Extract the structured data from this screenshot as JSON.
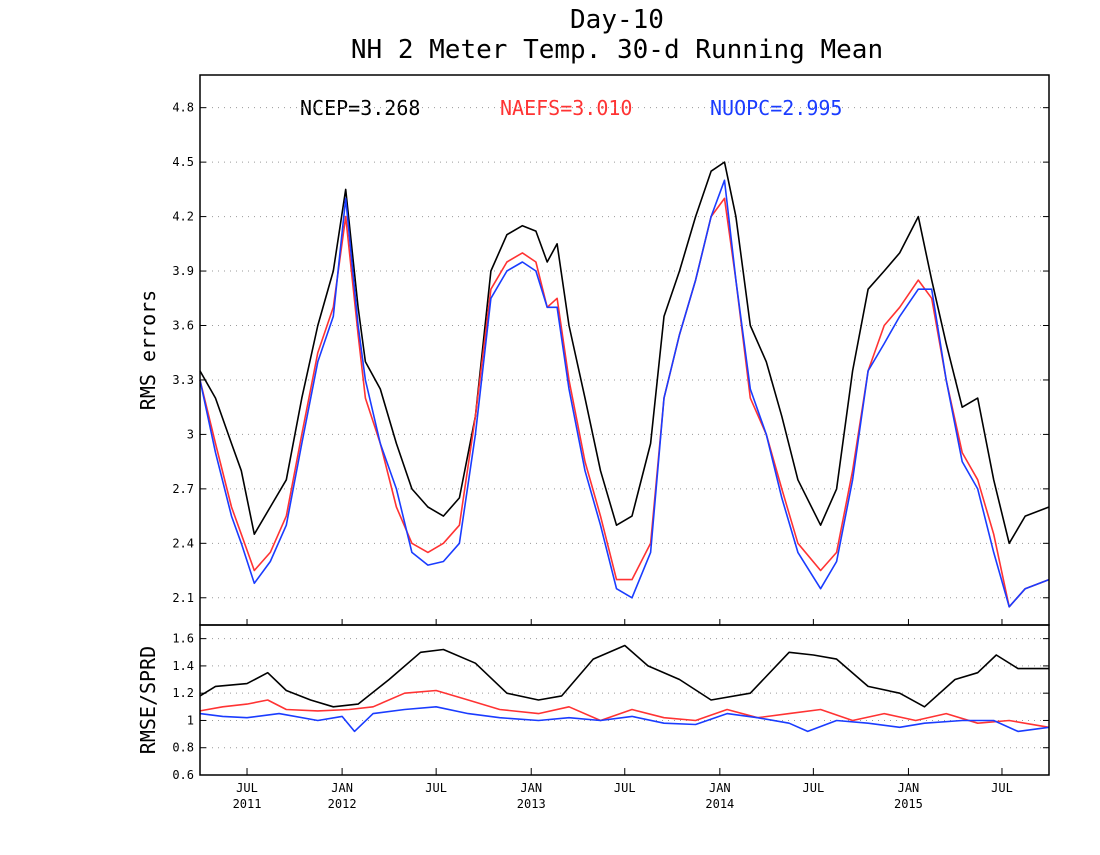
{
  "chart_data": [
    {
      "panel": "top",
      "type": "line",
      "title": "Day-10",
      "subtitle": "NH 2 Meter Temp. 30-d Running Mean",
      "ylabel": "RMS errors",
      "xlabel": "",
      "ylim": [
        1.95,
        4.98
      ],
      "yticks": [
        2.1,
        2.4,
        2.7,
        3.0,
        3.3,
        3.6,
        3.9,
        4.2,
        4.5,
        4.8
      ],
      "ytick_labels": [
        "2.1",
        "2.4",
        "2.7",
        "3",
        "3.3",
        "3.6",
        "3.9",
        "4.2",
        "4.5",
        "4.8"
      ],
      "grid": true,
      "legend_labels": [
        "NCEP=3.268",
        "NAEFS=3.010",
        "NUOPC=2.995"
      ],
      "legend_placement": "top inside",
      "x_range": [
        "2011-04-01",
        "2015-09-30"
      ],
      "series": [
        {
          "name": "NCEP",
          "mean_label": "NCEP=3.268",
          "color": "#000000",
          "x": [
            "2011-04-01",
            "2011-05-01",
            "2011-06-01",
            "2011-06-20",
            "2011-07-15",
            "2011-08-15",
            "2011-09-15",
            "2011-10-15",
            "2011-11-15",
            "2011-12-15",
            "2012-01-08",
            "2012-02-01",
            "2012-02-15",
            "2012-03-15",
            "2012-04-15",
            "2012-05-15",
            "2012-06-15",
            "2012-07-15",
            "2012-08-15",
            "2012-09-15",
            "2012-10-15",
            "2012-11-15",
            "2012-12-15",
            "2013-01-10",
            "2013-02-01",
            "2013-02-20",
            "2013-03-15",
            "2013-04-15",
            "2013-05-15",
            "2013-06-15",
            "2013-07-15",
            "2013-08-20",
            "2013-09-15",
            "2013-10-15",
            "2013-11-15",
            "2013-12-15",
            "2014-01-10",
            "2014-02-01",
            "2014-03-01",
            "2014-04-01",
            "2014-05-01",
            "2014-06-01",
            "2014-07-15",
            "2014-08-15",
            "2014-09-15",
            "2014-10-15",
            "2014-11-15",
            "2014-12-15",
            "2015-01-20",
            "2015-02-15",
            "2015-03-15",
            "2015-04-15",
            "2015-05-15",
            "2015-06-15",
            "2015-07-15",
            "2015-08-15",
            "2015-09-30"
          ],
          "y": [
            3.35,
            3.2,
            2.95,
            2.8,
            2.45,
            2.6,
            2.75,
            3.2,
            3.6,
            3.9,
            4.35,
            3.7,
            3.4,
            3.25,
            2.95,
            2.7,
            2.6,
            2.55,
            2.65,
            3.1,
            3.9,
            4.1,
            4.15,
            4.12,
            3.95,
            4.05,
            3.6,
            3.2,
            2.8,
            2.5,
            2.55,
            2.95,
            3.65,
            3.9,
            4.2,
            4.45,
            4.5,
            4.2,
            3.6,
            3.4,
            3.1,
            2.75,
            2.5,
            2.7,
            3.35,
            3.8,
            3.9,
            4.0,
            4.2,
            3.85,
            3.5,
            3.15,
            3.2,
            2.75,
            2.4,
            2.55,
            2.6
          ]
        },
        {
          "name": "NAEFS",
          "mean_label": "NAEFS=3.010",
          "color": "#ff3333",
          "x": [
            "2011-04-01",
            "2011-05-01",
            "2011-06-01",
            "2011-06-20",
            "2011-07-15",
            "2011-08-15",
            "2011-09-15",
            "2011-10-15",
            "2011-11-15",
            "2011-12-15",
            "2012-01-08",
            "2012-02-01",
            "2012-02-15",
            "2012-03-15",
            "2012-04-15",
            "2012-05-15",
            "2012-06-15",
            "2012-07-15",
            "2012-08-15",
            "2012-09-15",
            "2012-10-15",
            "2012-11-15",
            "2012-12-15",
            "2013-01-10",
            "2013-02-01",
            "2013-02-20",
            "2013-03-15",
            "2013-04-15",
            "2013-05-15",
            "2013-06-15",
            "2013-07-15",
            "2013-08-20",
            "2013-09-15",
            "2013-10-15",
            "2013-11-15",
            "2013-12-15",
            "2014-01-10",
            "2014-02-01",
            "2014-03-01",
            "2014-04-01",
            "2014-05-01",
            "2014-06-01",
            "2014-07-15",
            "2014-08-15",
            "2014-09-15",
            "2014-10-15",
            "2014-11-15",
            "2014-12-15",
            "2015-01-20",
            "2015-02-15",
            "2015-03-15",
            "2015-04-15",
            "2015-05-15",
            "2015-06-15",
            "2015-07-15",
            "2015-08-15",
            "2015-09-30"
          ],
          "y": [
            3.3,
            2.95,
            2.6,
            2.45,
            2.25,
            2.35,
            2.55,
            3.0,
            3.45,
            3.7,
            4.2,
            3.55,
            3.2,
            2.95,
            2.6,
            2.4,
            2.35,
            2.4,
            2.5,
            3.1,
            3.8,
            3.95,
            4.0,
            3.95,
            3.7,
            3.75,
            3.3,
            2.85,
            2.55,
            2.2,
            2.2,
            2.4,
            3.2,
            3.55,
            3.85,
            4.2,
            4.3,
            3.85,
            3.2,
            3.0,
            2.7,
            2.4,
            2.25,
            2.35,
            2.8,
            3.35,
            3.6,
            3.7,
            3.85,
            3.75,
            3.3,
            2.9,
            2.75,
            2.45,
            2.05,
            2.15,
            2.2
          ]
        },
        {
          "name": "NUOPC",
          "mean_label": "NUOPC=2.995",
          "color": "#1a3cff",
          "x": [
            "2011-04-01",
            "2011-05-01",
            "2011-06-01",
            "2011-06-20",
            "2011-07-15",
            "2011-08-15",
            "2011-09-15",
            "2011-10-15",
            "2011-11-15",
            "2011-12-15",
            "2012-01-08",
            "2012-02-01",
            "2012-02-15",
            "2012-03-15",
            "2012-04-15",
            "2012-05-15",
            "2012-06-15",
            "2012-07-15",
            "2012-08-15",
            "2012-09-15",
            "2012-10-15",
            "2012-11-15",
            "2012-12-15",
            "2013-01-10",
            "2013-02-01",
            "2013-02-20",
            "2013-03-15",
            "2013-04-15",
            "2013-05-15",
            "2013-06-15",
            "2013-07-15",
            "2013-08-20",
            "2013-09-15",
            "2013-10-15",
            "2013-11-15",
            "2013-12-15",
            "2014-01-10",
            "2014-02-01",
            "2014-03-01",
            "2014-04-01",
            "2014-05-01",
            "2014-06-01",
            "2014-07-15",
            "2014-08-15",
            "2014-09-15",
            "2014-10-15",
            "2014-11-15",
            "2014-12-15",
            "2015-01-20",
            "2015-02-15",
            "2015-03-15",
            "2015-04-15",
            "2015-05-15",
            "2015-06-15",
            "2015-07-15",
            "2015-08-15",
            "2015-09-30"
          ],
          "y": [
            3.3,
            2.9,
            2.55,
            2.4,
            2.18,
            2.3,
            2.5,
            2.95,
            3.4,
            3.65,
            4.3,
            3.6,
            3.3,
            2.95,
            2.7,
            2.35,
            2.28,
            2.3,
            2.4,
            3.0,
            3.75,
            3.9,
            3.95,
            3.9,
            3.7,
            3.7,
            3.25,
            2.8,
            2.5,
            2.15,
            2.1,
            2.35,
            3.2,
            3.55,
            3.85,
            4.2,
            4.4,
            3.85,
            3.25,
            3.0,
            2.65,
            2.35,
            2.15,
            2.3,
            2.75,
            3.35,
            3.5,
            3.65,
            3.8,
            3.8,
            3.3,
            2.85,
            2.7,
            2.35,
            2.05,
            2.15,
            2.2
          ]
        }
      ]
    },
    {
      "panel": "bottom",
      "type": "line",
      "ylabel": "RMSE/SPRD",
      "xlabel": "",
      "ylim": [
        0.6,
        1.7
      ],
      "yticks": [
        0.6,
        0.8,
        1.0,
        1.2,
        1.4,
        1.6
      ],
      "ytick_labels": [
        "0.6",
        "0.8",
        "1",
        "1.2",
        "1.4",
        "1.6"
      ],
      "grid": true,
      "x_range": [
        "2011-04-01",
        "2015-09-30"
      ],
      "x_ticks": [
        {
          "date": "2011-07-01",
          "label": "JUL",
          "year": "2011"
        },
        {
          "date": "2012-01-01",
          "label": "JAN",
          "year": "2012"
        },
        {
          "date": "2012-07-01",
          "label": "JUL",
          "year": ""
        },
        {
          "date": "2013-01-01",
          "label": "JAN",
          "year": "2013"
        },
        {
          "date": "2013-07-01",
          "label": "JUL",
          "year": ""
        },
        {
          "date": "2014-01-01",
          "label": "JAN",
          "year": "2014"
        },
        {
          "date": "2014-07-01",
          "label": "JUL",
          "year": ""
        },
        {
          "date": "2015-01-01",
          "label": "JAN",
          "year": "2015"
        },
        {
          "date": "2015-07-01",
          "label": "JUL",
          "year": ""
        }
      ],
      "series": [
        {
          "name": "NCEP",
          "color": "#000000",
          "x": [
            "2011-04-01",
            "2011-05-01",
            "2011-07-01",
            "2011-08-10",
            "2011-09-15",
            "2011-11-01",
            "2011-12-15",
            "2012-02-01",
            "2012-04-01",
            "2012-06-01",
            "2012-07-15",
            "2012-09-15",
            "2012-11-15",
            "2013-01-15",
            "2013-03-01",
            "2013-05-01",
            "2013-07-01",
            "2013-08-15",
            "2013-10-15",
            "2013-12-15",
            "2014-03-01",
            "2014-05-15",
            "2014-07-01",
            "2014-08-15",
            "2014-10-15",
            "2014-12-15",
            "2015-02-01",
            "2015-04-01",
            "2015-05-15",
            "2015-06-20",
            "2015-08-01",
            "2015-09-30"
          ],
          "y": [
            1.18,
            1.25,
            1.27,
            1.35,
            1.22,
            1.15,
            1.1,
            1.12,
            1.3,
            1.5,
            1.52,
            1.42,
            1.2,
            1.15,
            1.18,
            1.45,
            1.55,
            1.4,
            1.3,
            1.15,
            1.2,
            1.5,
            1.48,
            1.45,
            1.25,
            1.2,
            1.1,
            1.3,
            1.35,
            1.48,
            1.38,
            1.38
          ]
        },
        {
          "name": "NAEFS",
          "color": "#ff3333",
          "x": [
            "2011-04-01",
            "2011-05-15",
            "2011-07-01",
            "2011-08-10",
            "2011-09-15",
            "2011-11-15",
            "2012-01-15",
            "2012-03-01",
            "2012-05-01",
            "2012-07-01",
            "2012-09-01",
            "2012-11-01",
            "2013-01-15",
            "2013-03-15",
            "2013-05-15",
            "2013-07-15",
            "2013-09-15",
            "2013-11-15",
            "2014-01-15",
            "2014-03-15",
            "2014-05-15",
            "2014-07-15",
            "2014-09-15",
            "2014-11-15",
            "2015-01-15",
            "2015-03-15",
            "2015-05-15",
            "2015-07-15",
            "2015-09-30"
          ],
          "y": [
            1.07,
            1.1,
            1.12,
            1.15,
            1.08,
            1.07,
            1.08,
            1.1,
            1.2,
            1.22,
            1.15,
            1.08,
            1.05,
            1.1,
            1.0,
            1.08,
            1.02,
            1.0,
            1.08,
            1.02,
            1.05,
            1.08,
            1.0,
            1.05,
            1.0,
            1.05,
            0.98,
            1.0,
            0.95
          ]
        },
        {
          "name": "NUOPC",
          "color": "#1a3cff",
          "x": [
            "2011-04-01",
            "2011-05-15",
            "2011-07-01",
            "2011-09-01",
            "2011-11-15",
            "2012-01-01",
            "2012-01-25",
            "2012-03-01",
            "2012-05-01",
            "2012-07-01",
            "2012-09-01",
            "2012-11-01",
            "2013-01-15",
            "2013-03-15",
            "2013-05-15",
            "2013-07-15",
            "2013-09-15",
            "2013-11-15",
            "2014-01-15",
            "2014-03-15",
            "2014-05-15",
            "2014-06-20",
            "2014-08-15",
            "2014-10-15",
            "2014-12-15",
            "2015-02-01",
            "2015-04-15",
            "2015-06-15",
            "2015-08-01",
            "2015-09-30"
          ],
          "y": [
            1.05,
            1.03,
            1.02,
            1.05,
            1.0,
            1.03,
            0.92,
            1.05,
            1.08,
            1.1,
            1.05,
            1.02,
            1.0,
            1.02,
            1.0,
            1.03,
            0.98,
            0.97,
            1.05,
            1.02,
            0.98,
            0.92,
            1.0,
            0.98,
            0.95,
            0.98,
            1.0,
            1.0,
            0.92,
            0.95
          ]
        }
      ]
    }
  ]
}
